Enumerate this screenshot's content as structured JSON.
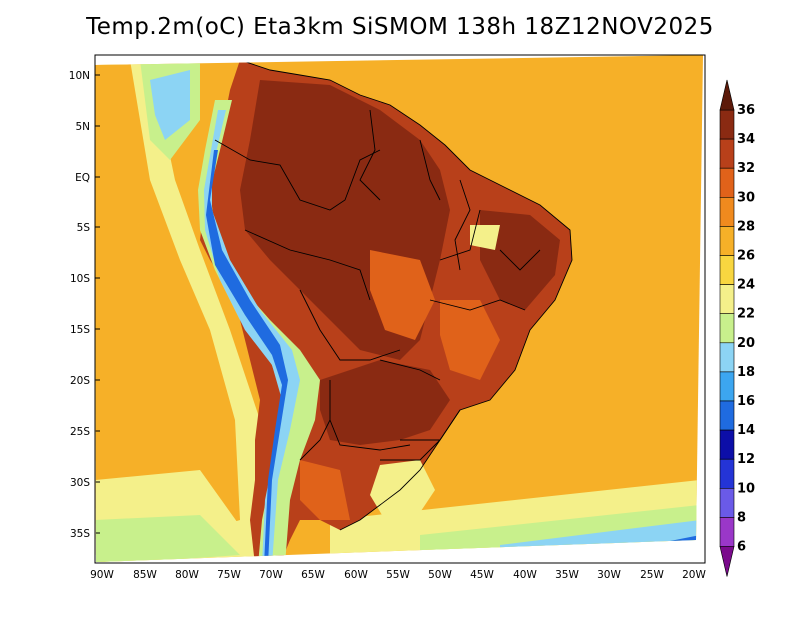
{
  "title": "Temp.2m(oC) Eta3km SiSMOM 138h 18Z12NOV2025",
  "lat_labels": [
    "10N",
    "5N",
    "EQ",
    "5S",
    "10S",
    "15S",
    "20S",
    "25S",
    "30S",
    "35S"
  ],
  "lon_labels": [
    "90W",
    "85W",
    "80W",
    "75W",
    "70W",
    "65W",
    "60W",
    "55W",
    "50W",
    "45W",
    "40W",
    "35W",
    "30W",
    "25W",
    "20W"
  ],
  "colorbar": {
    "levels": [
      "6",
      "8",
      "10",
      "12",
      "14",
      "16",
      "18",
      "20",
      "22",
      "24",
      "26",
      "28",
      "30",
      "32",
      "34",
      "36"
    ],
    "colors": [
      "#7a0a8c",
      "#9a37c8",
      "#6a5ae8",
      "#2434d6",
      "#0c0ea8",
      "#1f6be0",
      "#3ca6f0",
      "#8cd4f4",
      "#c8f08c",
      "#f4f08a",
      "#f8d640",
      "#f6b028",
      "#f08a1e",
      "#e0621a",
      "#b8401a",
      "#8a2a12",
      "#5c1a0a"
    ]
  },
  "palette": {
    "ocean": "#f6b028",
    "land_hot": "#b8401a",
    "land_very_hot": "#8a2a12",
    "land_warm": "#e0621a",
    "coast_cool": "#f4f08a",
    "cool": "#c8f08c",
    "cold": "#8cd4f4",
    "andes": "#1f6be0",
    "border": "#000000"
  }
}
